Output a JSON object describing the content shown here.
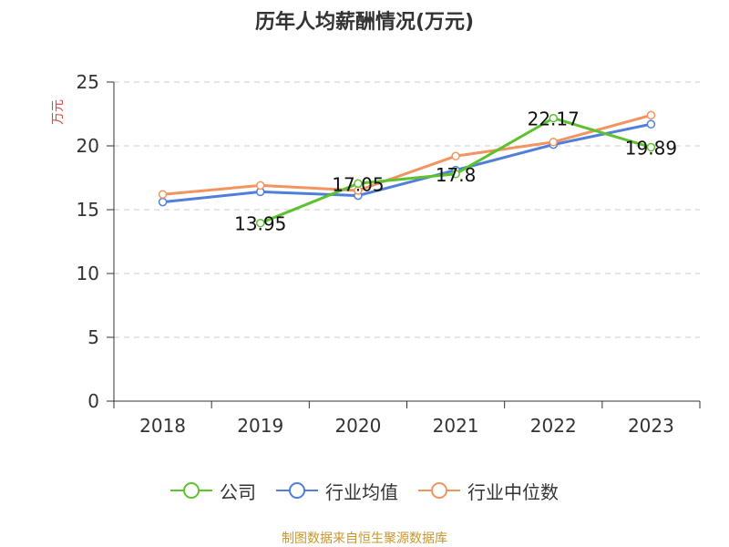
{
  "title": "历年人均薪酬情况(万元)",
  "source": "制图数据来自恒生聚源数据库",
  "colors": {
    "company": "#5cc22f",
    "industry_avg": "#4f7fd8",
    "industry_median": "#f39360",
    "grid": "#cccccc",
    "axis": "#333333",
    "ylabel": "#e0473c"
  },
  "chart_data": {
    "type": "line",
    "title": "历年人均薪酬情况(万元)",
    "xlabel": "",
    "ylabel": "万元",
    "ylim": [
      0,
      25
    ],
    "yticks": [
      0,
      5,
      10,
      15,
      20,
      25
    ],
    "grid": true,
    "legend_position": "bottom",
    "categories": [
      "2018",
      "2019",
      "2020",
      "2021",
      "2022",
      "2023"
    ],
    "series": [
      {
        "name": "公司",
        "color": "#5cc22f",
        "values": [
          null,
          13.95,
          17.05,
          17.8,
          22.17,
          19.89
        ],
        "labels": [
          "",
          "13.95",
          "17.05",
          "17.8",
          "22.17",
          "19.89"
        ]
      },
      {
        "name": "行业均值",
        "color": "#4f7fd8",
        "values": [
          15.6,
          16.4,
          16.1,
          18.1,
          20.1,
          21.7
        ]
      },
      {
        "name": "行业中位数",
        "color": "#f39360",
        "values": [
          16.2,
          16.9,
          16.5,
          19.2,
          20.3,
          22.4
        ]
      }
    ]
  }
}
